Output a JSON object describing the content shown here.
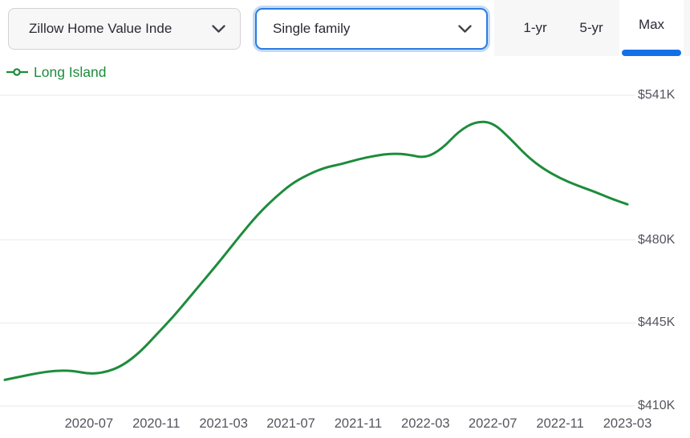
{
  "toolbar": {
    "metric_dropdown": {
      "value": "Zillow Home Value Inde"
    },
    "type_dropdown": {
      "value": "Single family"
    },
    "tabs": [
      {
        "label": "1-yr",
        "active": false
      },
      {
        "label": "5-yr",
        "active": false
      },
      {
        "label": "Max",
        "active": true
      }
    ]
  },
  "legend": {
    "series_label": "Long Island",
    "color": "#1d8c3c"
  },
  "colors": {
    "accent_blue": "#1371e8",
    "focus_border_blue": "#2a7de1",
    "series_green": "#1d8c3c",
    "gridline": "#e9e9ec",
    "axis_text": "#55555e",
    "control_text": "#2a2a33",
    "control_bg": "#f7f7f8",
    "control_border": "#d2d2d7"
  },
  "chart_data": {
    "type": "line",
    "title": "",
    "xlabel": "",
    "ylabel": "",
    "y_unit": "$K (USD thousands)",
    "ylim": [
      410,
      541
    ],
    "grid": "horizontal",
    "legend_position": "top-left",
    "y_ticks": [
      {
        "value": 541,
        "label": "$541K"
      },
      {
        "value": 480,
        "label": "$480K"
      },
      {
        "value": 445,
        "label": "$445K"
      },
      {
        "value": 410,
        "label": "$410K"
      }
    ],
    "x_tick_labels": [
      "2020-07",
      "2020-11",
      "2021-03",
      "2021-07",
      "2021-11",
      "2022-03",
      "2022-07",
      "2022-11",
      "2023-03"
    ],
    "series": [
      {
        "name": "Long Island",
        "color": "#1d8c3c",
        "x": [
          "2020-02",
          "2020-03",
          "2020-04",
          "2020-05",
          "2020-06",
          "2020-07",
          "2020-08",
          "2020-09",
          "2020-10",
          "2020-11",
          "2020-12",
          "2021-01",
          "2021-02",
          "2021-03",
          "2021-04",
          "2021-05",
          "2021-06",
          "2021-07",
          "2021-08",
          "2021-09",
          "2021-10",
          "2021-11",
          "2021-12",
          "2022-01",
          "2022-02",
          "2022-03",
          "2022-04",
          "2022-05",
          "2022-06",
          "2022-07",
          "2022-08",
          "2022-09",
          "2022-10",
          "2022-11",
          "2022-12",
          "2023-01",
          "2023-02",
          "2023-03"
        ],
        "values": [
          421.0,
          422.5,
          423.9,
          424.9,
          424.9,
          423.5,
          424.2,
          427.0,
          432.5,
          440.0,
          447.5,
          456.0,
          464.5,
          473.0,
          482.0,
          490.5,
          497.5,
          503.5,
          507.5,
          510.5,
          512.0,
          514.0,
          515.5,
          516.5,
          516.0,
          514.5,
          518.5,
          526.0,
          530.0,
          529.5,
          523.0,
          515.5,
          510.0,
          506.0,
          503.0,
          500.5,
          497.5,
          495.0
        ]
      }
    ]
  }
}
